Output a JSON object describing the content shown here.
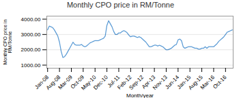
{
  "chart_data": {
    "type": "line",
    "title": "Monthly CPO price in RM/Tonne",
    "xlabel": "Month/year",
    "ylabel": "Monthly CPO price in\nRM/Tonne",
    "categories": [
      "Jan-08",
      null,
      null,
      null,
      null,
      null,
      null,
      "Aug-08",
      null,
      null,
      null,
      null,
      null,
      null,
      "Mar-09",
      null,
      null,
      null,
      null,
      null,
      null,
      "Oct-09",
      null,
      null,
      null,
      null,
      null,
      null,
      "May-10",
      null,
      null,
      null,
      null,
      null,
      null,
      "Dec-10",
      null,
      null,
      null,
      null,
      null,
      null,
      "Jul-11",
      null,
      null,
      null,
      null,
      null,
      null,
      "Feb-12",
      null,
      null,
      null,
      null,
      null,
      null,
      "Sep-12",
      null,
      null,
      null,
      null,
      null,
      null,
      "Apr-13",
      null,
      null,
      null,
      null,
      null,
      null,
      "Nov-13",
      null,
      null,
      null,
      null,
      null,
      null,
      "Jun-14",
      null,
      null,
      null,
      null,
      null,
      null,
      "Jan-15",
      null,
      null,
      null,
      null,
      null,
      null,
      "Aug-15",
      null,
      null,
      null,
      null,
      null,
      null,
      "Mar-16",
      null,
      null,
      null,
      null,
      null,
      null,
      "Oct-16",
      null,
      null,
      null,
      null
    ],
    "values": [
      3300,
      3550,
      3500,
      3450,
      3300,
      3100,
      2900,
      2500,
      1900,
      1500,
      1550,
      1700,
      1900,
      2100,
      2300,
      2500,
      2350,
      2300,
      2300,
      2300,
      2350,
      2250,
      2200,
      2250,
      2350,
      2450,
      2500,
      2550,
      2600,
      2600,
      2600,
      2650,
      2700,
      2750,
      2900,
      3600,
      3900,
      3700,
      3500,
      3200,
      3000,
      3000,
      3100,
      3100,
      3200,
      3250,
      3200,
      3100,
      2950,
      2850,
      2900,
      2900,
      2850,
      2800,
      2850,
      2800,
      2700,
      2600,
      2500,
      2350,
      2200,
      2200,
      2250,
      2300,
      2300,
      2250,
      2300,
      2250,
      2200,
      2100,
      2000,
      2000,
      2050,
      2100,
      2200,
      2300,
      2350,
      2650,
      2700,
      2600,
      2200,
      2100,
      2150,
      2200,
      2200,
      2200,
      2150,
      2100,
      2100,
      2050,
      2050,
      2100,
      2100,
      2200,
      2100,
      2200,
      2200,
      2200,
      2200,
      2300,
      2400,
      2550,
      2650,
      2750,
      2850,
      3000,
      3150,
      3200,
      3250,
      3300
    ],
    "color": "#5B9BD5",
    "ylim": [
      800,
      4200
    ],
    "yticks": [
      {
        "value": 1000,
        "label": "1000.00"
      },
      {
        "value": 2000,
        "label": "2000.00"
      },
      {
        "value": 3000,
        "label": "3000.00"
      },
      {
        "value": 4000,
        "label": "4000.00"
      }
    ],
    "grid": true
  }
}
